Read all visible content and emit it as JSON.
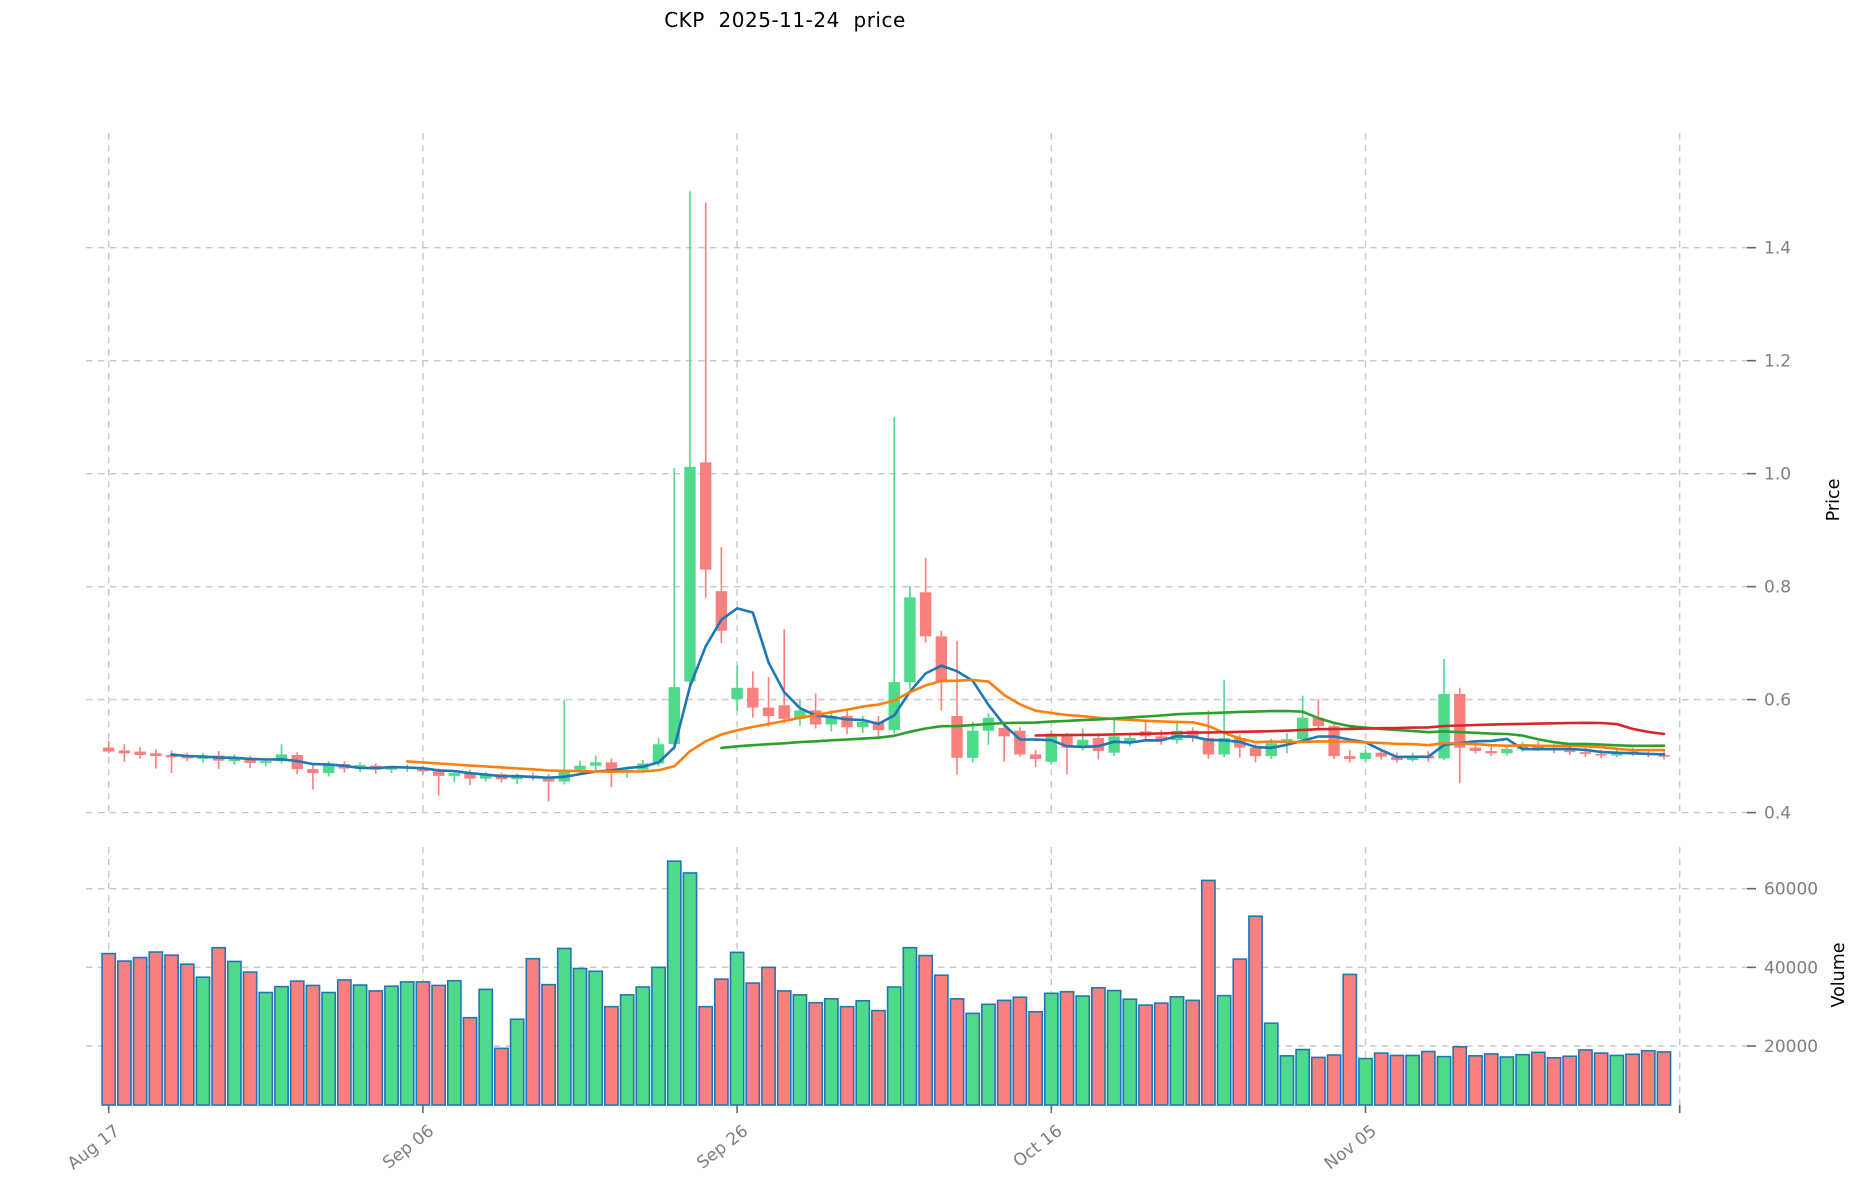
{
  "title": "CKP  2025-11-24  price",
  "chart_data": {
    "type": "candlestick",
    "title": "CKP  2025-11-24  price",
    "price_axis": {
      "label": "Price",
      "ticks": [
        0.4,
        0.6,
        0.8,
        1.0,
        1.2,
        1.4
      ],
      "ylim": [
        0.394,
        1.603
      ],
      "side": "right"
    },
    "volume_axis": {
      "label": "Volume",
      "ticks": [
        20000,
        40000,
        60000
      ],
      "ylim": [
        5000,
        70600
      ],
      "side": "right"
    },
    "x_ticks": [
      {
        "i": 0,
        "label": "Aug 17"
      },
      {
        "i": 20,
        "label": "Sep 06"
      },
      {
        "i": 40,
        "label": "Sep 26"
      },
      {
        "i": 60,
        "label": "Oct 16"
      },
      {
        "i": 80,
        "label": "Nov 05"
      },
      {
        "i": 100,
        "label": ""
      }
    ],
    "grid": {
      "on": true,
      "style": "dashed"
    },
    "mav": {
      "windows": [
        5,
        20,
        40,
        60
      ],
      "colors": [
        "#1f77b4",
        "#ff7f0e",
        "#2ca02c",
        "#d62728"
      ]
    },
    "colors": {
      "up": "#4fd98a",
      "down": "#fa7f7f",
      "volume_edge": "#2077b4",
      "grid": "#c8c8c8",
      "tick_label": "#7f7f7f",
      "tick_mark": "#666666"
    },
    "candles": [
      [
        "2025-08-17",
        0.515,
        0.527,
        0.505,
        0.508,
        43500
      ],
      [
        "2025-08-18",
        0.51,
        0.521,
        0.49,
        0.505,
        41600
      ],
      [
        "2025-08-19",
        0.508,
        0.516,
        0.495,
        0.502,
        42500
      ],
      [
        "2025-08-20",
        0.505,
        0.512,
        0.478,
        0.5,
        43900
      ],
      [
        "2025-08-21",
        0.502,
        0.51,
        0.47,
        0.498,
        43100
      ],
      [
        "2025-08-22",
        0.5,
        0.506,
        0.491,
        0.496,
        40800
      ],
      [
        "2025-08-23",
        0.495,
        0.506,
        0.488,
        0.501,
        37500
      ],
      [
        "2025-08-24",
        0.501,
        0.509,
        0.477,
        0.492,
        45000
      ],
      [
        "2025-08-25",
        0.491,
        0.503,
        0.485,
        0.498,
        41500
      ],
      [
        "2025-08-26",
        0.497,
        0.501,
        0.479,
        0.488,
        38800
      ],
      [
        "2025-08-27",
        0.488,
        0.496,
        0.482,
        0.491,
        33600
      ],
      [
        "2025-08-28",
        0.491,
        0.521,
        0.487,
        0.503,
        35100
      ],
      [
        "2025-08-29",
        0.502,
        0.507,
        0.468,
        0.477,
        36500
      ],
      [
        "2025-08-30",
        0.477,
        0.486,
        0.441,
        0.47,
        35400
      ],
      [
        "2025-08-31",
        0.47,
        0.491,
        0.464,
        0.486,
        33600
      ],
      [
        "2025-09-01",
        0.486,
        0.491,
        0.471,
        0.478,
        36800
      ],
      [
        "2025-09-02",
        0.478,
        0.489,
        0.472,
        0.484,
        35500
      ],
      [
        "2025-09-03",
        0.483,
        0.487,
        0.469,
        0.476,
        34000
      ],
      [
        "2025-09-04",
        0.476,
        0.483,
        0.47,
        0.479,
        35200
      ],
      [
        "2025-09-05",
        0.479,
        0.485,
        0.472,
        0.481,
        36300
      ],
      [
        "2025-09-06",
        0.479,
        0.483,
        0.467,
        0.473,
        36300
      ],
      [
        "2025-09-07",
        0.473,
        0.478,
        0.43,
        0.465,
        35400
      ],
      [
        "2025-09-08",
        0.465,
        0.473,
        0.454,
        0.47,
        36600
      ],
      [
        "2025-09-09",
        0.47,
        0.476,
        0.449,
        0.46,
        27200
      ],
      [
        "2025-09-10",
        0.46,
        0.472,
        0.455,
        0.468,
        34400
      ],
      [
        "2025-09-11",
        0.468,
        0.471,
        0.453,
        0.459,
        19400
      ],
      [
        "2025-09-12",
        0.459,
        0.469,
        0.451,
        0.466,
        26800
      ],
      [
        "2025-09-13",
        0.466,
        0.471,
        0.457,
        0.461,
        42200
      ],
      [
        "2025-09-14",
        0.461,
        0.468,
        0.42,
        0.455,
        35600
      ],
      [
        "2025-09-15",
        0.455,
        0.6,
        0.45,
        0.476,
        44800
      ],
      [
        "2025-09-16",
        0.476,
        0.492,
        0.468,
        0.483,
        39700
      ],
      [
        "2025-09-17",
        0.483,
        0.501,
        0.474,
        0.489,
        39000
      ],
      [
        "2025-09-18",
        0.489,
        0.496,
        0.445,
        0.471,
        30000
      ],
      [
        "2025-09-19",
        0.471,
        0.481,
        0.462,
        0.476,
        33000
      ],
      [
        "2025-09-20",
        0.476,
        0.493,
        0.47,
        0.487,
        35000
      ],
      [
        "2025-09-21",
        0.487,
        0.532,
        0.482,
        0.521,
        40000
      ],
      [
        "2025-09-22",
        0.521,
        1.01,
        0.511,
        0.622,
        67000
      ],
      [
        "2025-09-23",
        0.632,
        1.5,
        0.62,
        1.012,
        64000
      ],
      [
        "2025-09-24",
        1.02,
        1.48,
        0.78,
        0.83,
        30000
      ],
      [
        "2025-09-25",
        0.792,
        0.87,
        0.7,
        0.722,
        37000
      ],
      [
        "2025-09-26",
        0.601,
        0.661,
        0.58,
        0.621,
        43800
      ],
      [
        "2025-09-27",
        0.621,
        0.65,
        0.568,
        0.586,
        36000
      ],
      [
        "2025-09-28",
        0.586,
        0.64,
        0.552,
        0.571,
        40000
      ],
      [
        "2025-09-29",
        0.59,
        0.725,
        0.558,
        0.566,
        34000
      ],
      [
        "2025-09-30",
        0.566,
        0.601,
        0.553,
        0.581,
        33000
      ],
      [
        "2025-10-01",
        0.581,
        0.611,
        0.549,
        0.556,
        31000
      ],
      [
        "2025-10-02",
        0.556,
        0.581,
        0.544,
        0.571,
        32000
      ],
      [
        "2025-10-03",
        0.571,
        0.581,
        0.539,
        0.551,
        30000
      ],
      [
        "2025-10-04",
        0.551,
        0.571,
        0.541,
        0.561,
        31500
      ],
      [
        "2025-10-05",
        0.561,
        0.571,
        0.534,
        0.546,
        29000
      ],
      [
        "2025-10-06",
        0.546,
        1.1,
        0.54,
        0.631,
        35000
      ],
      [
        "2025-10-07",
        0.631,
        0.801,
        0.619,
        0.781,
        45000
      ],
      [
        "2025-10-08",
        0.79,
        0.851,
        0.701,
        0.712,
        43000
      ],
      [
        "2025-10-09",
        0.712,
        0.722,
        0.581,
        0.631,
        38000
      ],
      [
        "2025-10-10",
        0.571,
        0.704,
        0.467,
        0.497,
        32000
      ],
      [
        "2025-10-11",
        0.497,
        0.561,
        0.489,
        0.545,
        28300
      ],
      [
        "2025-10-12",
        0.545,
        0.576,
        0.52,
        0.568,
        30600
      ],
      [
        "2025-10-13",
        0.55,
        0.556,
        0.49,
        0.535,
        31600
      ],
      [
        "2025-10-14",
        0.545,
        0.551,
        0.499,
        0.503,
        32400
      ],
      [
        "2025-10-15",
        0.503,
        0.511,
        0.481,
        0.495,
        28700
      ],
      [
        "2025-10-16",
        0.49,
        0.546,
        0.485,
        0.54,
        33400
      ],
      [
        "2025-10-17",
        0.535,
        0.541,
        0.468,
        0.515,
        33800
      ],
      [
        "2025-10-18",
        0.515,
        0.549,
        0.51,
        0.529,
        32700
      ],
      [
        "2025-10-19",
        0.532,
        0.541,
        0.494,
        0.509,
        34800
      ],
      [
        "2025-10-20",
        0.506,
        0.565,
        0.5,
        0.535,
        34100
      ],
      [
        "2025-10-21",
        0.523,
        0.541,
        0.518,
        0.532,
        31900
      ],
      [
        "2025-10-22",
        0.544,
        0.561,
        0.53,
        0.535,
        30400
      ],
      [
        "2025-10-23",
        0.535,
        0.546,
        0.52,
        0.528,
        30900
      ],
      [
        "2025-10-24",
        0.528,
        0.561,
        0.522,
        0.545,
        32500
      ],
      [
        "2025-10-25",
        0.545,
        0.551,
        0.525,
        0.532,
        31600
      ],
      [
        "2025-10-26",
        0.532,
        0.581,
        0.495,
        0.503,
        62100
      ],
      [
        "2025-10-27",
        0.503,
        0.635,
        0.498,
        0.532,
        32800
      ],
      [
        "2025-10-28",
        0.532,
        0.538,
        0.497,
        0.515,
        42100
      ],
      [
        "2025-10-29",
        0.515,
        0.521,
        0.489,
        0.5,
        53000
      ],
      [
        "2025-10-30",
        0.5,
        0.531,
        0.495,
        0.523,
        25800
      ],
      [
        "2025-10-31",
        0.523,
        0.541,
        0.505,
        0.53,
        17500
      ],
      [
        "2025-11-01",
        0.53,
        0.607,
        0.525,
        0.568,
        19100
      ],
      [
        "2025-11-02",
        0.568,
        0.601,
        0.548,
        0.553,
        17100
      ],
      [
        "2025-11-03",
        0.553,
        0.561,
        0.495,
        0.5,
        17700
      ],
      [
        "2025-11-04",
        0.5,
        0.511,
        0.488,
        0.495,
        38200
      ],
      [
        "2025-11-05",
        0.495,
        0.511,
        0.49,
        0.506,
        16800
      ],
      [
        "2025-11-06",
        0.506,
        0.513,
        0.494,
        0.499,
        18200
      ],
      [
        "2025-11-07",
        0.499,
        0.506,
        0.488,
        0.493,
        17600
      ],
      [
        "2025-11-08",
        0.493,
        0.506,
        0.49,
        0.501,
        17600
      ],
      [
        "2025-11-09",
        0.501,
        0.509,
        0.49,
        0.496,
        18600
      ],
      [
        "2025-11-10",
        0.496,
        0.672,
        0.493,
        0.61,
        17300
      ],
      [
        "2025-11-11",
        0.61,
        0.621,
        0.452,
        0.515,
        19800
      ],
      [
        "2025-11-12",
        0.515,
        0.526,
        0.505,
        0.509,
        17500
      ],
      [
        "2025-11-13",
        0.509,
        0.517,
        0.5,
        0.505,
        18000
      ],
      [
        "2025-11-14",
        0.505,
        0.519,
        0.501,
        0.513,
        17200
      ],
      [
        "2025-11-15",
        0.513,
        0.525,
        0.508,
        0.52,
        17800
      ],
      [
        "2025-11-16",
        0.52,
        0.527,
        0.509,
        0.514,
        18400
      ],
      [
        "2025-11-17",
        0.514,
        0.521,
        0.505,
        0.51,
        17000
      ],
      [
        "2025-11-18",
        0.51,
        0.517,
        0.502,
        0.507,
        17400
      ],
      [
        "2025-11-19",
        0.507,
        0.514,
        0.499,
        0.504,
        19000
      ],
      [
        "2025-11-20",
        0.504,
        0.511,
        0.496,
        0.501,
        18200
      ],
      [
        "2025-11-21",
        0.501,
        0.513,
        0.498,
        0.508,
        17600
      ],
      [
        "2025-11-22",
        0.508,
        0.515,
        0.5,
        0.505,
        17900
      ],
      [
        "2025-11-23",
        0.505,
        0.512,
        0.498,
        0.502,
        18800
      ],
      [
        "2025-11-24",
        0.502,
        0.509,
        0.494,
        0.499,
        18500
      ]
    ]
  }
}
